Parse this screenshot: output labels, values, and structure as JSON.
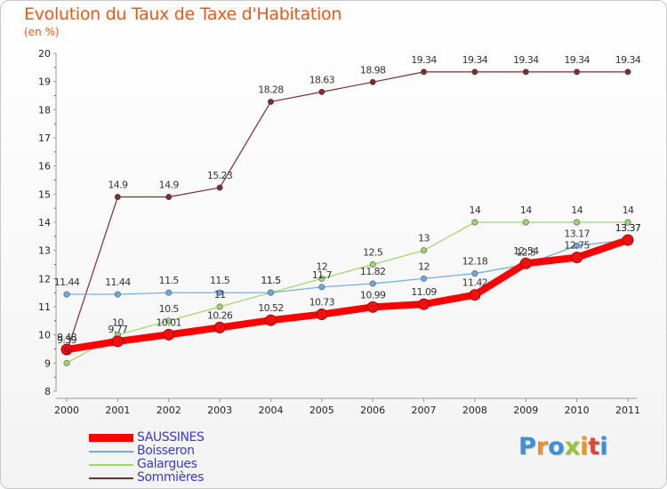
{
  "title": "Evolution du Taux de Taxe d'Habitation",
  "unit": "(en %)",
  "logo": {
    "text": "Proxiti",
    "colors": [
      "#3d8fd6",
      "#e8942a",
      "#3d8fd6",
      "#9ac43a",
      "#e8942a",
      "#d64a3a",
      "#3d8fd6"
    ]
  },
  "chart_data": {
    "type": "line",
    "x": [
      "2000",
      "2001",
      "2002",
      "2003",
      "2004",
      "2005",
      "2006",
      "2007",
      "2008",
      "2009",
      "2010",
      "2011"
    ],
    "ylim": [
      8,
      20
    ],
    "yticks": [
      "8",
      "9",
      "10",
      "11",
      "12",
      "13",
      "14",
      "15",
      "16",
      "17",
      "18",
      "19",
      "20"
    ],
    "grid": false,
    "legend_position": "bottom-left",
    "series": [
      {
        "name": "SAUSSINES",
        "color": "#ff0000",
        "values": [
          9.48,
          9.77,
          10.01,
          10.26,
          10.52,
          10.73,
          10.99,
          11.09,
          11.42,
          12.54,
          12.75,
          13.37
        ],
        "labels": [
          "9.48",
          "9.77",
          "10.01",
          "10.26",
          "10.52",
          "10.73",
          "10.99",
          "11.09",
          "11.42",
          "12.54",
          "12.75",
          "13.37"
        ]
      },
      {
        "name": "Boisseron",
        "color": "#6fa8dc",
        "values": [
          11.44,
          11.44,
          11.5,
          11.5,
          11.5,
          11.7,
          11.82,
          12,
          12.18,
          12.5,
          13.17,
          13.37
        ],
        "labels": [
          "11.44",
          "11.44",
          "11.5",
          "11.5",
          "11.5",
          "11.7",
          "11.82",
          "12",
          "12.18",
          "12.5",
          "13.17",
          "13.37"
        ]
      },
      {
        "name": "Galargues",
        "color": "#9ed66b",
        "values": [
          9,
          10,
          10.5,
          11,
          11.5,
          12,
          12.5,
          13,
          14,
          14,
          14,
          14
        ],
        "labels": [
          "9",
          "10",
          "10.5",
          "11",
          "11.5",
          "12",
          "12.5",
          "13",
          "14",
          "14",
          "14",
          "14"
        ]
      },
      {
        "name": "Sommières",
        "color": "#7a2e2e",
        "values": [
          9.39,
          14.9,
          14.9,
          15.23,
          18.28,
          18.63,
          18.98,
          19.34,
          19.34,
          19.34,
          19.34,
          19.34
        ],
        "labels": [
          "9.39",
          "14.9",
          "14.9",
          "15.23",
          "18.28",
          "18.63",
          "18.98",
          "19.34",
          "19.34",
          "19.34",
          "19.34",
          "19.34"
        ]
      }
    ]
  }
}
